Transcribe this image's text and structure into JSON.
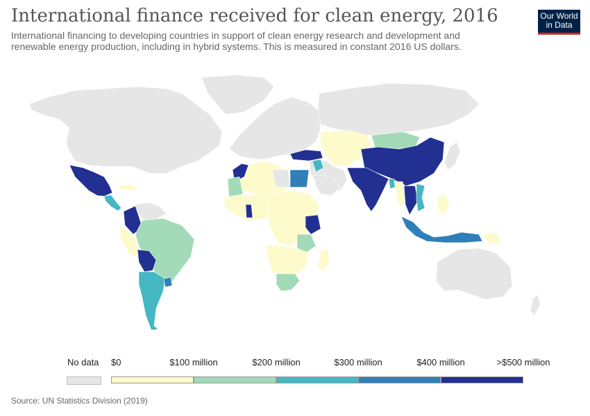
{
  "title": "International finance received for clean energy, 2016",
  "subtitle": "International financing to developing countries in support of clean energy research and development and renewable energy production, including in hybrid systems. This is measured in constant 2016 US dollars.",
  "logo": {
    "line1": "Our World",
    "line2": "in Data"
  },
  "source": "Source: UN Statistics Division (2019)",
  "legend": {
    "no_data_label": "No data",
    "no_data_color": "#e6e6e6",
    "bins": [
      {
        "label": "$0",
        "color": "#fdfbcc"
      },
      {
        "label": "$100 million",
        "color": "#a3dab8"
      },
      {
        "label": "$200 million",
        "color": "#44b7c3"
      },
      {
        "label": "$300 million",
        "color": "#2f7fb8"
      },
      {
        "label": "$400 million",
        "color": "#223092"
      }
    ],
    "end_label": ">$500 million"
  },
  "regions": [
    {
      "name": "north-america",
      "color": "#e6e6e6"
    },
    {
      "name": "greenland",
      "color": "#e6e6e6"
    },
    {
      "name": "mexico",
      "color": "#223092"
    },
    {
      "name": "central-america",
      "color": "#44b7c3"
    },
    {
      "name": "cuba",
      "color": "#fdfbcc"
    },
    {
      "name": "colombia",
      "color": "#223092"
    },
    {
      "name": "venezuela",
      "color": "#e6e6e6"
    },
    {
      "name": "brazil",
      "color": "#a3dab8"
    },
    {
      "name": "peru",
      "color": "#fdfbcc"
    },
    {
      "name": "bolivia",
      "color": "#223092"
    },
    {
      "name": "argentina",
      "color": "#44b7c3"
    },
    {
      "name": "uruguay",
      "color": "#2f7fb8"
    },
    {
      "name": "europe",
      "color": "#e6e6e6"
    },
    {
      "name": "russia",
      "color": "#e6e6e6"
    },
    {
      "name": "turkey",
      "color": "#223092"
    },
    {
      "name": "morocco",
      "color": "#223092"
    },
    {
      "name": "north-africa",
      "color": "#fdfbcc"
    },
    {
      "name": "egypt",
      "color": "#2f7fb8"
    },
    {
      "name": "libya",
      "color": "#e6e6e6"
    },
    {
      "name": "west-africa",
      "color": "#fdfbcc"
    },
    {
      "name": "mauritania",
      "color": "#a3dab8"
    },
    {
      "name": "ghana",
      "color": "#223092"
    },
    {
      "name": "central-africa",
      "color": "#fdfbcc"
    },
    {
      "name": "kenya",
      "color": "#223092"
    },
    {
      "name": "tanzania",
      "color": "#a3dab8"
    },
    {
      "name": "southern-africa",
      "color": "#fdfbcc"
    },
    {
      "name": "south-africa",
      "color": "#a3dab8"
    },
    {
      "name": "madagascar",
      "color": "#fdfbcc"
    },
    {
      "name": "middle-east",
      "color": "#e6e6e6"
    },
    {
      "name": "jordan",
      "color": "#44b7c3"
    },
    {
      "name": "central-asia",
      "color": "#fdfbcc"
    },
    {
      "name": "mongolia",
      "color": "#a3dab8"
    },
    {
      "name": "china",
      "color": "#223092"
    },
    {
      "name": "india",
      "color": "#223092"
    },
    {
      "name": "bangladesh",
      "color": "#44b7c3"
    },
    {
      "name": "myanmar",
      "color": "#fdfbcc"
    },
    {
      "name": "thailand",
      "color": "#223092"
    },
    {
      "name": "vietnam",
      "color": "#44b7c3"
    },
    {
      "name": "philippines",
      "color": "#fdfbcc"
    },
    {
      "name": "indonesia",
      "color": "#2f7fb8"
    },
    {
      "name": "png",
      "color": "#fdfbcc"
    },
    {
      "name": "australia",
      "color": "#e6e6e6"
    },
    {
      "name": "new-zealand",
      "color": "#e6e6e6"
    },
    {
      "name": "japan",
      "color": "#e6e6e6"
    },
    {
      "name": "saudi-arabia",
      "color": "#e6e6e6"
    }
  ]
}
